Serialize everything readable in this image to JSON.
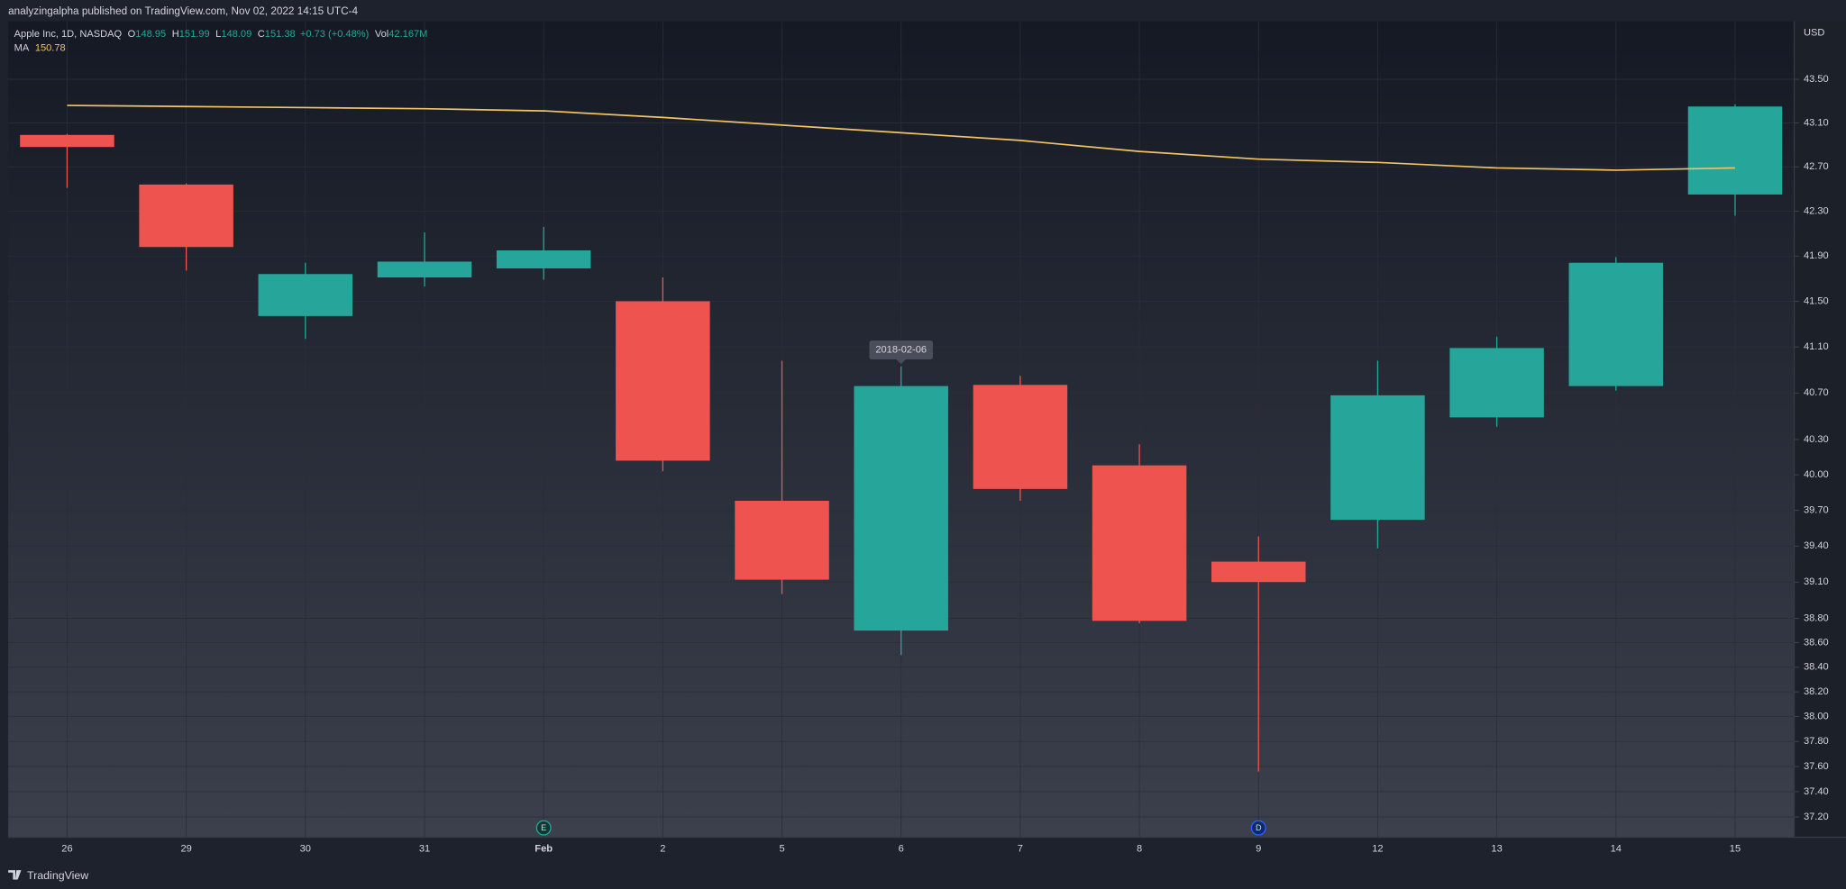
{
  "chart_data": {
    "type": "candlestick",
    "publisher": "analyzingalpha published on TradingView.com, Nov 02, 2022 14:15 UTC-4",
    "title": "Apple Inc, 1D, NASDAQ",
    "ohlc_legend": [
      {
        "label": "O",
        "value": 148.95
      },
      {
        "label": "H",
        "value": 151.99
      },
      {
        "label": "L",
        "value": 148.09
      },
      {
        "label": "C",
        "value": 151.38
      }
    ],
    "change": "+0.73 (+0.48%)",
    "volume_label": "Vol",
    "volume": "42.167M",
    "currency": "USD",
    "brand": "TradingView",
    "categories": [
      "26",
      "29",
      "30",
      "31",
      "Feb",
      "2",
      "5",
      "6",
      "7",
      "8",
      "9",
      "12",
      "13",
      "14",
      "15"
    ],
    "open": [
      42.99,
      42.54,
      41.37,
      41.71,
      41.79,
      41.5,
      39.78,
      38.7,
      40.77,
      40.08,
      39.27,
      39.62,
      40.49,
      40.76,
      42.45
    ],
    "high": [
      43.0,
      42.55,
      41.84,
      42.11,
      42.16,
      41.71,
      40.98,
      40.93,
      40.85,
      40.26,
      39.48,
      40.98,
      41.19,
      41.89,
      43.27
    ],
    "low": [
      42.51,
      41.77,
      41.17,
      41.63,
      41.69,
      40.03,
      39.0,
      38.5,
      39.78,
      38.76,
      37.56,
      39.38,
      40.41,
      40.72,
      42.26
    ],
    "close": [
      42.88,
      41.98,
      41.74,
      41.85,
      41.95,
      40.12,
      39.12,
      40.76,
      39.88,
      38.78,
      39.1,
      40.68,
      41.09,
      41.84,
      43.25
    ],
    "up_color": "#26a69a",
    "down_color": "#ef5350",
    "ma": {
      "name": "MA",
      "color": "#f2c462",
      "last": 150.78,
      "values": [
        43.26,
        43.25,
        43.24,
        43.23,
        43.21,
        43.15,
        43.08,
        43.01,
        42.94,
        42.84,
        42.77,
        42.74,
        42.69,
        42.67,
        42.69
      ]
    },
    "log_scale": true,
    "grid": true,
    "ylim": [
      37.04,
      44.04
    ],
    "yticks": [
      {
        "value": 43.5,
        "label": "43.50"
      },
      {
        "value": 43.1,
        "label": "43.10"
      },
      {
        "value": 42.7,
        "label": "42.70"
      },
      {
        "value": 42.3,
        "label": "42.30"
      },
      {
        "value": 41.9,
        "label": "41.90"
      },
      {
        "value": 41.5,
        "label": "41.50"
      },
      {
        "value": 41.1,
        "label": "41.10"
      },
      {
        "value": 40.7,
        "label": "40.70"
      },
      {
        "value": 40.3,
        "label": "40.30"
      },
      {
        "value": 40.0,
        "label": "40.00"
      },
      {
        "value": 39.7,
        "label": "39.70"
      },
      {
        "value": 39.4,
        "label": "39.40"
      },
      {
        "value": 39.1,
        "label": "39.10"
      },
      {
        "value": 38.8,
        "label": "38.80"
      },
      {
        "value": 38.6,
        "label": "38.60"
      },
      {
        "value": 38.4,
        "label": "38.40"
      },
      {
        "value": 38.2,
        "label": "38.20"
      },
      {
        "value": 38.0,
        "label": "38.00"
      },
      {
        "value": 37.8,
        "label": "37.80"
      },
      {
        "value": 37.6,
        "label": "37.60"
      },
      {
        "value": 37.4,
        "label": "37.40"
      },
      {
        "value": 37.2,
        "label": "37.20"
      }
    ],
    "events": [
      {
        "label": "E",
        "category": "Feb"
      },
      {
        "label": "D",
        "category": "9"
      }
    ],
    "tooltip": {
      "text": "2018-02-06",
      "category": "6"
    }
  }
}
